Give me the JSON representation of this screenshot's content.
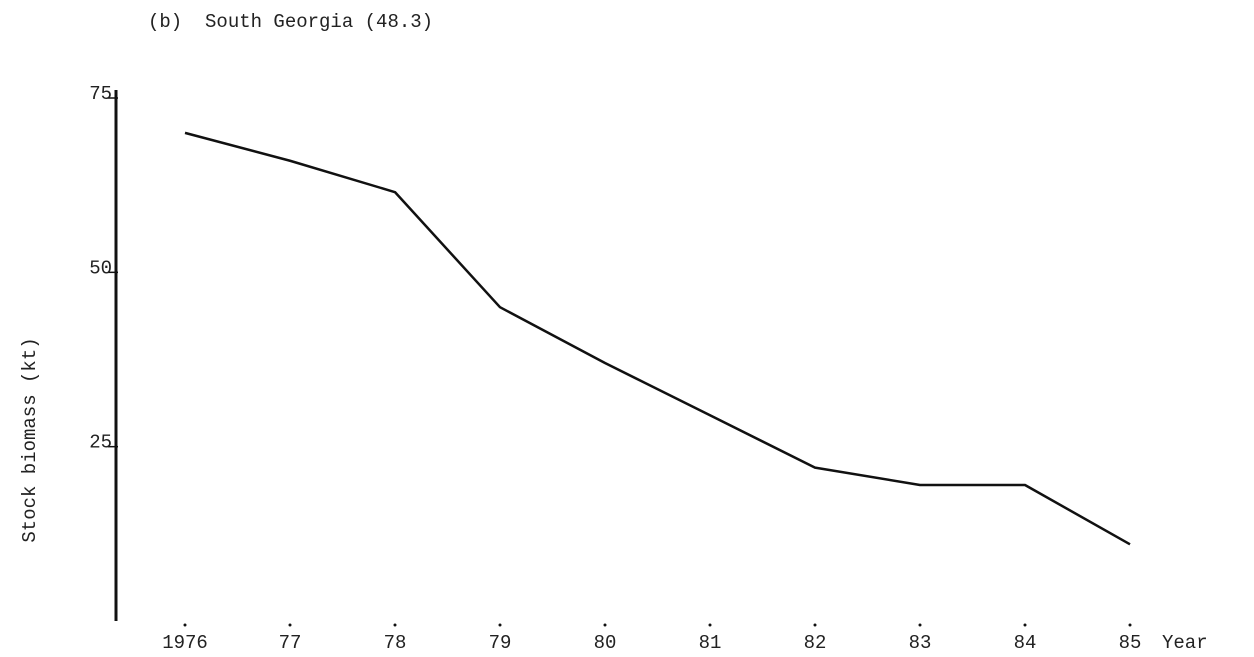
{
  "chart_data": {
    "type": "line",
    "title": "(b)  South Georgia (48.3)",
    "x_label": "Year",
    "y_label": "Stock biomass (kt)",
    "categories": [
      "1976",
      "77",
      "78",
      "79",
      "80",
      "81",
      "82",
      "83",
      "84",
      "85"
    ],
    "series": [
      {
        "name": "Stock biomass",
        "color": "#111111",
        "values": [
          70,
          66,
          61.5,
          45,
          37,
          29.5,
          22,
          19.5,
          19.5,
          11
        ]
      }
    ],
    "ylim": [
      0,
      75
    ],
    "yticks": [
      25,
      50,
      75
    ],
    "grid": false
  }
}
